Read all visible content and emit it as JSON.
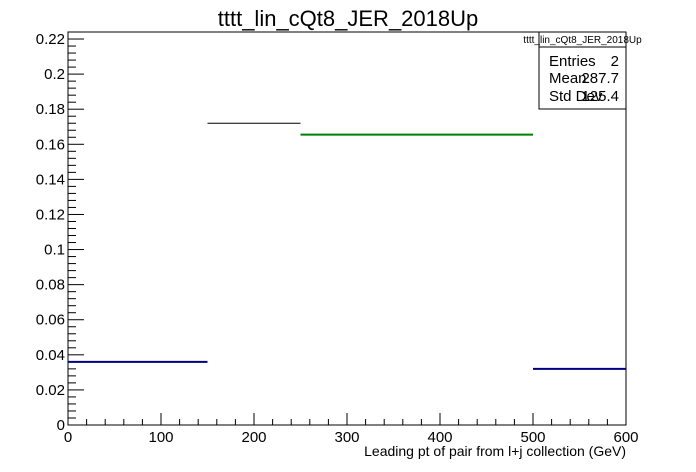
{
  "chart_data": {
    "type": "histogram",
    "title": "tttt_lin_cQt8_JER_2018Up",
    "xlabel": "Leading pt of pair from l+j collection (GeV)",
    "ylabel": "",
    "xlim": [
      0,
      600
    ],
    "ylim": [
      0,
      0.224
    ],
    "x_ticks": [
      0,
      100,
      200,
      300,
      400,
      500,
      600
    ],
    "y_ticks": [
      0,
      0.02,
      0.04,
      0.06,
      0.08,
      0.1,
      0.12,
      0.14,
      0.16,
      0.18,
      0.2,
      0.22
    ],
    "grid": false,
    "series": [
      {
        "color": "#000000",
        "bins": [
          {
            "x0": 150,
            "x1": 250,
            "y": 0.172
          }
        ]
      },
      {
        "color": "#008000",
        "bins": [
          {
            "x0": 250,
            "x1": 500,
            "y": 0.1655
          }
        ]
      },
      {
        "color": "#000080",
        "bins": [
          {
            "x0": 0,
            "x1": 150,
            "y": 0.036
          },
          {
            "x0": 500,
            "x1": 600,
            "y": 0.032
          }
        ]
      }
    ]
  },
  "stats_box": {
    "name": "tttt_lin_cQt8_JER_2018Up",
    "rows": [
      {
        "label": "Entries",
        "value": "2"
      },
      {
        "label": "Mean",
        "value": "287.7"
      },
      {
        "label": "Std Dev",
        "value": "125.4"
      }
    ]
  }
}
